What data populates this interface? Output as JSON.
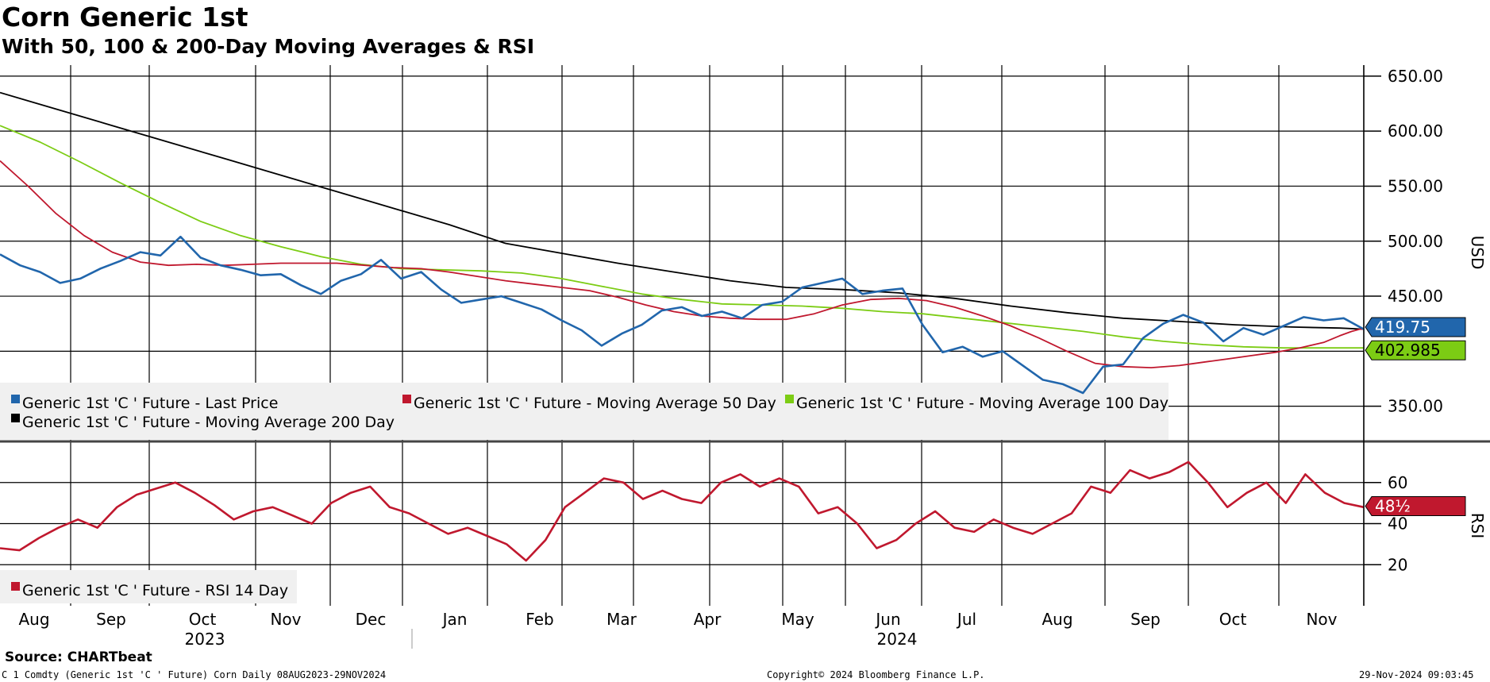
{
  "title": "Corn Generic 1st",
  "subtitle": "With 50, 100 & 200-Day Moving Averages & RSI",
  "source": "Source: CHARTbeat",
  "footer": {
    "left": "C 1 Comdty (Generic 1st 'C ' Future) Corn  Daily 08AUG2023-29NOV2024",
    "center": "Copyright© 2024 Bloomberg Finance L.P.",
    "right": "29-Nov-2024 09:03:45"
  },
  "colors": {
    "price": "#2166ac",
    "ma50": "#c0182e",
    "ma100": "#7ccc14",
    "ma200": "#000000",
    "rsi": "#c0182e"
  },
  "chart_data": [
    {
      "type": "line",
      "title": "Corn Generic 1st",
      "ylabel": "USD",
      "ylim": [
        318,
        660
      ],
      "yticks": [
        "650.00",
        "600.00",
        "550.00",
        "500.00",
        "450.00",
        "350.00"
      ],
      "ytick_values": [
        650,
        600,
        550,
        500,
        450,
        350
      ],
      "gridlines": [
        650,
        600,
        550,
        500,
        450,
        400,
        350
      ],
      "x": [
        0,
        5,
        10,
        15,
        20,
        25,
        30,
        35,
        40,
        45,
        50,
        55,
        60,
        65,
        70,
        75,
        80,
        85,
        90,
        95,
        100,
        105,
        110,
        115,
        120,
        125,
        130,
        135,
        140,
        145,
        150,
        155,
        160,
        165,
        170,
        175,
        180,
        185,
        190,
        195,
        200,
        205,
        210,
        215,
        220,
        225,
        230,
        235,
        240,
        245,
        250,
        255,
        260,
        265,
        270,
        275,
        280,
        285,
        290,
        295,
        300,
        305,
        310,
        315,
        320,
        325,
        330,
        335,
        340
      ],
      "series": [
        {
          "name": "Generic 1st 'C ' Future - Last Price",
          "values": [
            488,
            478,
            472,
            462,
            466,
            475,
            482,
            490,
            487,
            504,
            485,
            478,
            474,
            469,
            470,
            460,
            452,
            464,
            470,
            483,
            466,
            472,
            456,
            444,
            447,
            450,
            444,
            438,
            428,
            419,
            405,
            416,
            424,
            437,
            440,
            432,
            436,
            430,
            442,
            445,
            458,
            462,
            466,
            452,
            455,
            457,
            424,
            399,
            404,
            395,
            400,
            387,
            374,
            370,
            362,
            386,
            388,
            412,
            425,
            433,
            426,
            409,
            421,
            415,
            423,
            431,
            428,
            430,
            420
          ],
          "last_label": "419.75"
        },
        {
          "name": "Generic 1st 'C ' Future - Moving Average 50 Day",
          "values": [
            573,
            550,
            525,
            505,
            490,
            481,
            478,
            479,
            478,
            479,
            480,
            480,
            480,
            478,
            476,
            475,
            472,
            468,
            464,
            461,
            458,
            455,
            449,
            442,
            436,
            432,
            430,
            429,
            429,
            434,
            442,
            447,
            448,
            446,
            440,
            432,
            423,
            412,
            400,
            389,
            386,
            385,
            387,
            390,
            393,
            396,
            399,
            403,
            408,
            414,
            418,
            420,
            420
          ],
          "x_values": [
            0,
            7,
            14,
            21,
            28,
            35,
            42,
            49,
            56,
            63,
            70,
            77,
            84,
            91,
            98,
            105,
            112,
            119,
            126,
            133,
            140,
            147,
            154,
            161,
            168,
            175,
            182,
            189,
            196,
            203,
            210,
            217,
            224,
            231,
            238,
            245,
            252,
            259,
            266,
            273,
            280,
            287,
            294,
            300,
            306,
            312,
            318,
            324,
            330,
            334,
            337,
            339,
            340
          ]
        },
        {
          "name": "Generic 1st 'C ' Future - Moving Average 100 Day",
          "values": [
            605,
            590,
            572,
            553,
            535,
            518,
            505,
            495,
            486,
            479,
            475,
            474,
            473,
            471,
            466,
            459,
            452,
            447,
            443,
            442,
            441,
            439,
            436,
            434,
            430,
            426,
            422,
            418,
            413,
            409,
            406,
            404,
            403,
            403,
            403
          ],
          "x_values": [
            0,
            10,
            20,
            30,
            40,
            50,
            60,
            70,
            80,
            90,
            100,
            110,
            120,
            130,
            140,
            150,
            160,
            170,
            180,
            190,
            200,
            210,
            220,
            230,
            240,
            250,
            260,
            270,
            280,
            290,
            300,
            310,
            320,
            330,
            340
          ],
          "last_label": "402.985"
        },
        {
          "name": "Generic 1st 'C ' Future - Moving Average 200 Day",
          "values": [
            635,
            620,
            605,
            590,
            575,
            560,
            545,
            530,
            515,
            498,
            489,
            480,
            472,
            464,
            458,
            456,
            453,
            448,
            441,
            435,
            430,
            427,
            424,
            422,
            421,
            420
          ],
          "x_values": [
            0,
            14,
            28,
            42,
            56,
            70,
            84,
            98,
            112,
            126,
            140,
            154,
            168,
            182,
            196,
            210,
            224,
            238,
            252,
            266,
            280,
            294,
            308,
            322,
            334,
            340
          ]
        }
      ]
    },
    {
      "type": "line",
      "ylabel": "RSI",
      "ylim": [
        0,
        80
      ],
      "yticks": [
        "60",
        "40",
        "20"
      ],
      "ytick_values": [
        60,
        40,
        20
      ],
      "series": [
        {
          "name": "Generic 1st 'C ' Future - RSI 14 Day",
          "values": [
            28,
            27,
            33,
            38,
            42,
            38,
            48,
            54,
            57,
            60,
            55,
            49,
            42,
            46,
            48,
            44,
            40,
            50,
            55,
            58,
            48,
            45,
            40,
            35,
            38,
            34,
            30,
            22,
            32,
            48,
            55,
            62,
            60,
            52,
            56,
            52,
            50,
            60,
            64,
            58,
            62,
            58,
            45,
            48,
            40,
            28,
            32,
            40,
            46,
            38,
            36,
            42,
            38,
            35,
            40,
            45,
            58,
            55,
            66,
            62,
            65,
            70,
            60,
            48,
            55,
            60,
            50,
            64,
            55,
            50,
            48
          ],
          "last_label": "48½"
        }
      ]
    }
  ],
  "x_axis": {
    "months": [
      "Aug",
      "Sep",
      "Oct",
      "Nov",
      "Dec",
      "Jan",
      "Feb",
      "Mar",
      "Apr",
      "May",
      "Jun",
      "Jul",
      "Aug",
      "Sep",
      "Oct",
      "Nov"
    ],
    "years": [
      "2023",
      "2024"
    ]
  },
  "legend": {
    "price": "Generic 1st 'C ' Future - Last Price",
    "ma50": "Generic 1st 'C ' Future - Moving Average 50 Day",
    "ma100": "Generic 1st 'C ' Future - Moving Average 100 Day",
    "ma200": "Generic 1st 'C ' Future - Moving Average 200 Day",
    "rsi": "Generic 1st 'C ' Future - RSI 14 Day"
  }
}
